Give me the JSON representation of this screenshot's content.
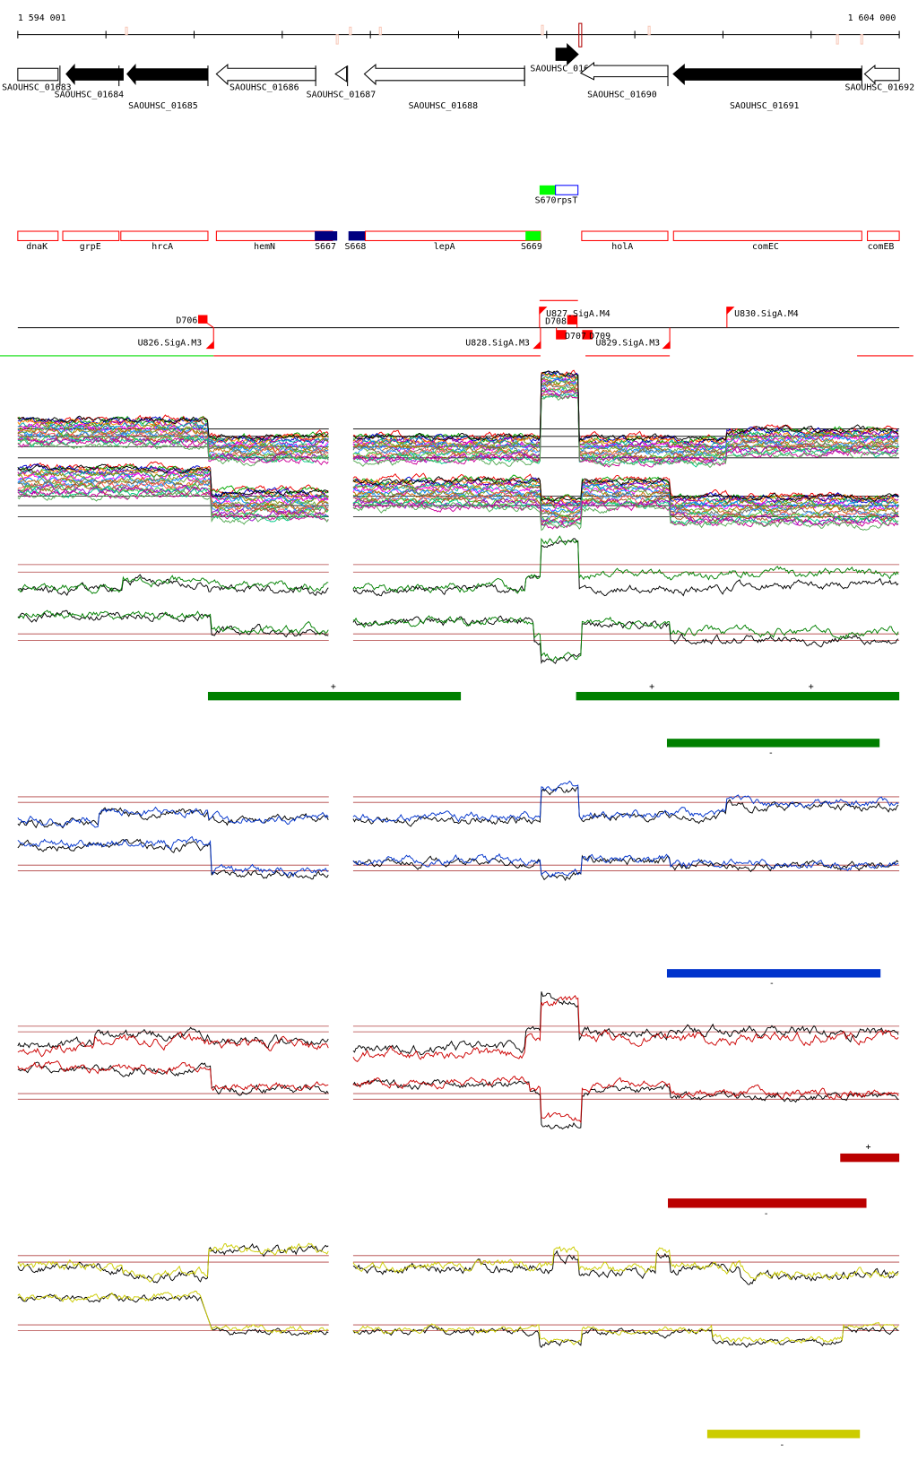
{
  "scale": {
    "start_label": "1 594 001",
    "end_label": "1 604 000"
  },
  "genes": [
    {
      "id": "g1683",
      "label": "SAOUHSC_01683"
    },
    {
      "id": "g1684",
      "label": "SAOUHSC_01684"
    },
    {
      "id": "g1685",
      "label": "SAOUHSC_01685"
    },
    {
      "id": "g1686",
      "label": "SAOUHSC_01686"
    },
    {
      "id": "g1687",
      "label": "SAOUHSC_01687"
    },
    {
      "id": "g1688",
      "label": "SAOUHSC_01688"
    },
    {
      "id": "g1689",
      "label": "SAOUHSC_01689"
    },
    {
      "id": "g1690",
      "label": "SAOUHSC_01690"
    },
    {
      "id": "g1691",
      "label": "SAOUHSC_01691"
    },
    {
      "id": "g1692",
      "label": "SAOUHSC_01692"
    }
  ],
  "srna": {
    "label": "S670rpsT"
  },
  "annotations": [
    "dnaK",
    "grpE",
    "hrcA",
    "hemN",
    "S667",
    "S668",
    "lepA",
    "S669",
    "holA",
    "comEC",
    "comEB"
  ],
  "promoters": {
    "D706": "D706",
    "U826": "U826.SigA.M3",
    "U827": "U827.SigA.M4",
    "D708": "D708",
    "D707": "D707",
    "D709": "D709",
    "U828": "U828.SigA.M3",
    "U829": "U829.SigA.M3",
    "U830": "U830.SigA.M4"
  },
  "segments": {
    "green": [
      {
        "sign": "+"
      },
      {
        "sign": "+"
      },
      {
        "sign": "+"
      },
      {
        "sign": "-"
      }
    ],
    "blue": [
      {
        "sign": "-"
      }
    ],
    "red": [
      {
        "sign": "+"
      },
      {
        "sign": "-"
      }
    ],
    "yellow": [
      {
        "sign": "-"
      }
    ]
  },
  "colors": {
    "green": "#008000",
    "blue": "#0033cc",
    "red": "#bb0000",
    "yellow": "#cccc00",
    "feature": "#ff0000",
    "navy": "#000080",
    "lime": "#00ff00"
  }
}
